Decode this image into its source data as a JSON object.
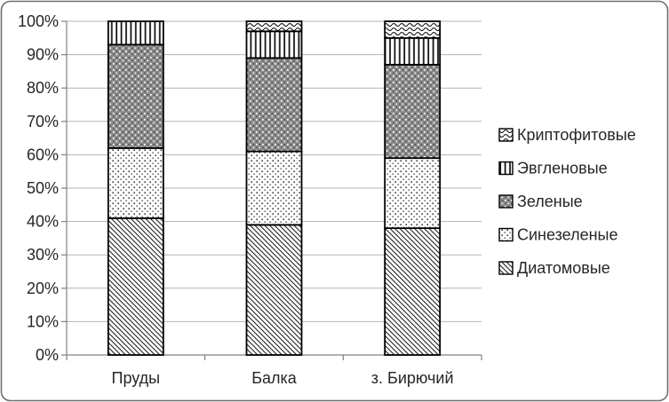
{
  "chart_data": {
    "type": "bar",
    "variant": "stacked-100-percent",
    "title": "",
    "xlabel": "",
    "ylabel": "",
    "categories": [
      "Пруды",
      "Балка",
      "з. Бирючий"
    ],
    "series": [
      {
        "name": "Диатомовые",
        "pattern": "diagonal-hatch",
        "values": [
          41,
          39,
          38
        ]
      },
      {
        "name": "Синезеленые",
        "pattern": "light-dots",
        "values": [
          21,
          22,
          21
        ]
      },
      {
        "name": "Зеленые",
        "pattern": "dark-dither",
        "values": [
          31,
          28,
          28
        ]
      },
      {
        "name": "Эвгленовые",
        "pattern": "vertical-lines",
        "values": [
          7,
          8,
          8
        ]
      },
      {
        "name": "Криптофитовые",
        "pattern": "waves",
        "values": [
          0,
          3,
          5
        ]
      }
    ],
    "y_ticks": [
      "0%",
      "10%",
      "20%",
      "30%",
      "40%",
      "50%",
      "60%",
      "70%",
      "80%",
      "90%",
      "100%"
    ],
    "ylim": [
      0,
      100
    ],
    "grid": true,
    "legend_position": "right",
    "legend_order_top_to_bottom": [
      "Криптофитовые",
      "Эвгленовые",
      "Зеленые",
      "Синезеленые",
      "Диатомовые"
    ],
    "colors": {
      "bar_border": "#000000",
      "pattern_ink": "#141414",
      "gridline": "#b3b3b3",
      "axis": "#808080",
      "text": "#262626",
      "background": "#ffffff",
      "frame_border": "#6e6e6e"
    }
  }
}
